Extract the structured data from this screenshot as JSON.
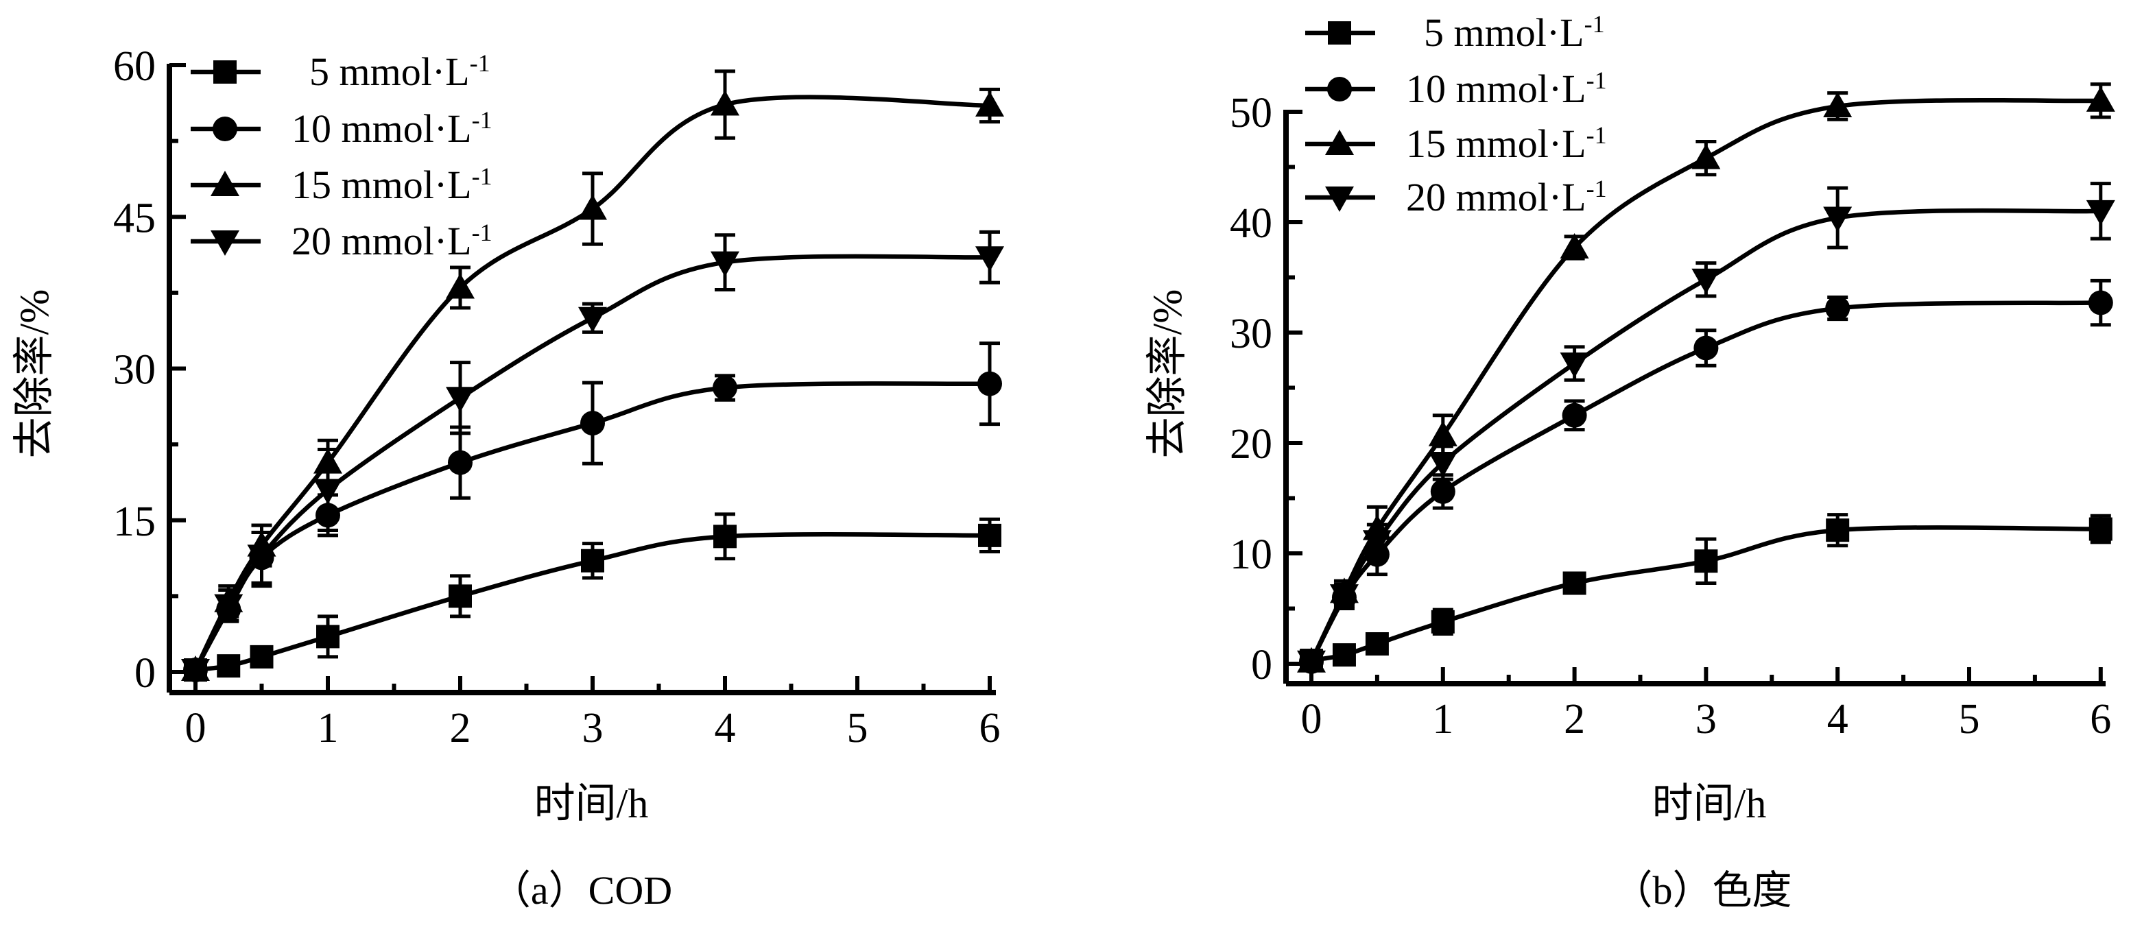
{
  "page": {
    "background": "#ffffff",
    "foreground": "#000000"
  },
  "chart_data": [
    {
      "type": "line",
      "panel": "a",
      "caption": "（a）COD",
      "xlabel": "时间/h",
      "ylabel": "去除率/%",
      "xlim": [
        0,
        6
      ],
      "ylim": [
        0,
        60
      ],
      "x_major_ticks": [
        0,
        1,
        2,
        3,
        4,
        5,
        6
      ],
      "x_minor_ticks": [
        0.5,
        1.5,
        2.5,
        3.5,
        4.5,
        5.5
      ],
      "y_major_ticks": [
        0,
        15,
        30,
        45,
        60
      ],
      "y_minor_ticks": [
        7.5,
        22.5,
        37.5,
        52.5
      ],
      "grid": false,
      "legend_position": "top-left-inside",
      "x": [
        0,
        0.25,
        0.5,
        1,
        2,
        3,
        4,
        6
      ],
      "series": [
        {
          "name": "5 mmol·L⁻¹",
          "marker": "square",
          "values": [
            0.2,
            0.6,
            1.5,
            3.5,
            7.5,
            11.0,
            13.4,
            13.5
          ],
          "errors": [
            0.6,
            0.6,
            0.8,
            2.0,
            2.0,
            1.7,
            2.2,
            1.6
          ]
        },
        {
          "name": "10 mmol·L⁻¹",
          "marker": "circle",
          "values": [
            0.2,
            6.2,
            11.3,
            15.5,
            20.7,
            24.6,
            28.1,
            28.5
          ],
          "errors": [
            0.6,
            1.2,
            2.5,
            2.0,
            3.5,
            4.0,
            1.2,
            4.0
          ]
        },
        {
          "name": "15 mmol·L⁻¹",
          "marker": "triangle-up",
          "values": [
            0.2,
            7.0,
            12.5,
            20.7,
            38.0,
            45.8,
            56.1,
            56.0
          ],
          "errors": [
            0.6,
            1.5,
            2.0,
            2.2,
            2.0,
            3.5,
            3.3,
            1.6
          ]
        },
        {
          "name": "20 mmol·L⁻¹",
          "marker": "triangle-down",
          "values": [
            0.2,
            6.6,
            11.5,
            18.0,
            27.1,
            35.0,
            40.5,
            41.0
          ],
          "errors": [
            0.6,
            1.5,
            3.0,
            4.0,
            3.5,
            1.4,
            2.7,
            2.5
          ]
        }
      ]
    },
    {
      "type": "line",
      "panel": "b",
      "caption": "（b）色度",
      "xlabel": "时间/h",
      "ylabel": "去除率/%",
      "xlim": [
        0,
        6
      ],
      "ylim": [
        0,
        50
      ],
      "x_major_ticks": [
        0,
        1,
        2,
        3,
        4,
        5,
        6
      ],
      "x_minor_ticks": [
        0.5,
        1.5,
        2.5,
        3.5,
        4.5,
        5.5
      ],
      "y_major_ticks": [
        0,
        10,
        20,
        30,
        40,
        50
      ],
      "y_minor_ticks": [
        5,
        15,
        25,
        35,
        45
      ],
      "grid": false,
      "legend_position": "top-left-above",
      "x": [
        0,
        0.25,
        0.5,
        1,
        2,
        3,
        4,
        6
      ],
      "series": [
        {
          "name": "5 mmol·L⁻¹",
          "marker": "square",
          "values": [
            0.3,
            0.8,
            1.8,
            3.8,
            7.3,
            9.3,
            12.1,
            12.2
          ],
          "errors": [
            0.9,
            0.5,
            0.6,
            1.1,
            0.8,
            2.0,
            1.4,
            1.2
          ]
        },
        {
          "name": "10 mmol·L⁻¹",
          "marker": "circle",
          "values": [
            0.2,
            6.0,
            9.9,
            15.6,
            22.5,
            28.6,
            32.2,
            32.7
          ],
          "errors": [
            0.6,
            1.0,
            1.8,
            1.5,
            1.3,
            1.6,
            1.0,
            2.0
          ]
        },
        {
          "name": "15 mmol·L⁻¹",
          "marker": "triangle-up",
          "values": [
            0.2,
            6.5,
            12.2,
            20.7,
            37.7,
            45.8,
            50.5,
            51.0
          ],
          "errors": [
            0.6,
            1.0,
            2.0,
            1.8,
            1.0,
            1.5,
            1.2,
            1.5
          ]
        },
        {
          "name": "20 mmol·L⁻¹",
          "marker": "triangle-down",
          "values": [
            0.2,
            6.2,
            11.1,
            18.2,
            27.2,
            34.8,
            40.4,
            41.0
          ],
          "errors": [
            0.6,
            1.0,
            1.5,
            1.5,
            1.5,
            1.5,
            2.7,
            2.5
          ]
        }
      ]
    }
  ]
}
